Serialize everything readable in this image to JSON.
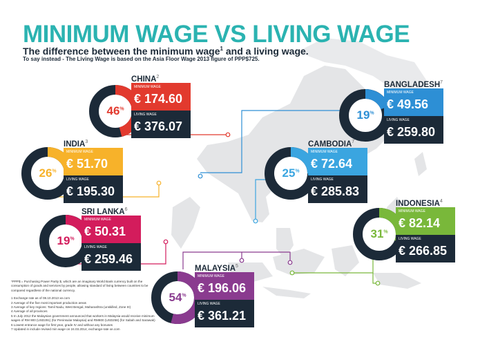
{
  "title": "MINIMUM WAGE VS LIVING WAGE",
  "subtitle_main": "The difference between the minimum wage",
  "subtitle_sup": "1",
  "subtitle_end": " and a living wage.",
  "subtitle2": "To say instead - The Living Wage is based on the Asia Floor Wage 2013 figure of PPP$725.",
  "labels": {
    "minimum": "MINIMUM WAGE",
    "living": "LIVING WAGE"
  },
  "colors": {
    "teal": "#2bb3b1",
    "navy": "#1c2a38",
    "china": "#e23a2e",
    "india": "#f7b22a",
    "srilanka": "#d31c5c",
    "bangladesh": "#2d8fd5",
    "cambodia": "#3aa5e0",
    "indonesia": "#79b83a",
    "malaysia": "#8a3b8f"
  },
  "countries": [
    {
      "key": "china",
      "name": "CHINA",
      "sup": "2",
      "minimum": "€ 174.60",
      "living": "€ 376.07",
      "pct": "46",
      "pct_value": 46,
      "color": "#e23a2e"
    },
    {
      "key": "bangladesh",
      "name": "BANGLADESH",
      "sup": "7",
      "minimum": "€ 49.56",
      "living": "€ 259.80",
      "pct": "19",
      "pct_value": 19,
      "color": "#2d8fd5"
    },
    {
      "key": "india",
      "name": "INDIA",
      "sup": "3",
      "minimum": "€ 51.70",
      "living": "€ 195.30",
      "pct": "26",
      "pct_value": 26,
      "color": "#f7b22a"
    },
    {
      "key": "cambodia",
      "name": "CAMBODIA",
      "sup": "7",
      "minimum": "€ 72.64",
      "living": "€ 285.83",
      "pct": "25",
      "pct_value": 25,
      "color": "#3aa5e0"
    },
    {
      "key": "srilanka",
      "name": "SRI LANKA",
      "sup": "6",
      "minimum": "€ 50.31",
      "living": "€ 259.46",
      "pct": "19",
      "pct_value": 19,
      "color": "#d31c5c"
    },
    {
      "key": "indonesia",
      "name": "INDONESIA",
      "sup": "4",
      "minimum": "€ 82.14",
      "living": "€ 266.85",
      "pct": "31",
      "pct_value": 31,
      "color": "#79b83a"
    },
    {
      "key": "malaysia",
      "name": "MALAYSIA",
      "sup": "5",
      "minimum": "€ 196.06",
      "living": "€ 361.21",
      "pct": "54",
      "pct_value": 54,
      "color": "#8a3b8f"
    }
  ],
  "pct_sign": "%",
  "notes": {
    "ppp": "*PPP$ = Purchasing Power Parity $, which are an imaginary World Bank currency built on the consumption of goods and services by people, allowing standard of living between countries to be compared regardless of the national currency.",
    "items": [
      "1 Exchange rate as of 08.10.2013 xe.com",
      "2 Average of the five most important production areas",
      "3 Average of key regions: Tamil Nadu, West Bengal, Maharashtra (unskilled, Zone III)",
      "4 Average of all provinces",
      "5 In July 2012 the Malaysian government announced that workers in Malaysia would receive minimum wages of RM 900 (USD291) (for Peninsular Malaysia) and RM800 (USD258) (for Sabah and Sarawak)",
      "6 Lowest entrance wage for first year, grade IV and without any bonuses",
      "7 Updated in include revised min wage on 24.03.2014, exchange-rate xe.com"
    ]
  }
}
